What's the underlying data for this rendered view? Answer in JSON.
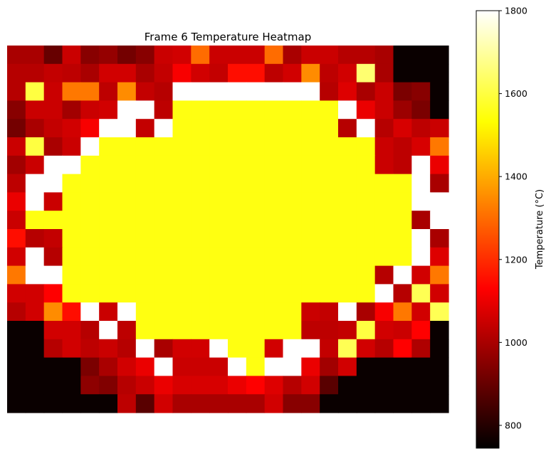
{
  "chart_data": {
    "type": "heatmap",
    "title": "Frame 6 Temperature Heatmap",
    "xlabel": "",
    "ylabel": "",
    "colormap": "hot",
    "colorbar": {
      "label": "Temperature (°C)",
      "vmin": 745,
      "vmax": 1800,
      "ticks": [
        800,
        1000,
        1200,
        1400,
        1600,
        1800
      ]
    },
    "rows": 20,
    "cols": 24,
    "values": [
      [
        1000,
        1000,
        900,
        1050,
        950,
        970,
        920,
        950,
        1050,
        1060,
        1300,
        1050,
        1050,
        1050,
        1300,
        1000,
        1050,
        1050,
        1020,
        1020,
        1000,
        760,
        760,
        760
      ],
      [
        1020,
        1020,
        1040,
        1030,
        1000,
        1060,
        1060,
        1000,
        1040,
        1120,
        1060,
        1040,
        1150,
        1150,
        1030,
        1060,
        1350,
        1030,
        1060,
        1650,
        1000,
        760,
        760,
        760
      ],
      [
        1020,
        1600,
        1050,
        1320,
        1320,
        1030,
        1350,
        1040,
        1020,
        1800,
        1800,
        1800,
        1800,
        1800,
        1800,
        1800,
        1800,
        1020,
        1080,
        1000,
        1050,
        930,
        950,
        760
      ],
      [
        950,
        1050,
        1050,
        990,
        1050,
        1060,
        1800,
        1800,
        1030,
        1550,
        1550,
        1550,
        1550,
        1550,
        1550,
        1550,
        1550,
        1550,
        1800,
        1100,
        1050,
        980,
        930,
        760
      ],
      [
        920,
        1000,
        1040,
        1060,
        1120,
        1800,
        1800,
        1040,
        1800,
        1550,
        1550,
        1550,
        1550,
        1550,
        1550,
        1550,
        1550,
        1550,
        1020,
        1800,
        1020,
        1070,
        1030,
        1050
      ],
      [
        1050,
        1600,
        1000,
        1050,
        1800,
        1550,
        1550,
        1550,
        1550,
        1550,
        1550,
        1550,
        1550,
        1550,
        1550,
        1550,
        1550,
        1550,
        1550,
        1550,
        1050,
        1030,
        1070,
        1320
      ],
      [
        990,
        1050,
        1800,
        1800,
        1550,
        1550,
        1550,
        1550,
        1550,
        1550,
        1550,
        1550,
        1550,
        1550,
        1550,
        1550,
        1550,
        1550,
        1550,
        1550,
        1050,
        1030,
        1800,
        1100
      ],
      [
        1030,
        1800,
        1800,
        1550,
        1550,
        1550,
        1550,
        1550,
        1550,
        1550,
        1550,
        1550,
        1550,
        1550,
        1550,
        1550,
        1550,
        1550,
        1550,
        1550,
        1550,
        1550,
        1800,
        1000
      ],
      [
        1100,
        1800,
        1050,
        1550,
        1550,
        1550,
        1550,
        1550,
        1550,
        1550,
        1550,
        1550,
        1550,
        1550,
        1550,
        1550,
        1550,
        1550,
        1550,
        1550,
        1550,
        1550,
        1800,
        1800
      ],
      [
        1050,
        1550,
        1550,
        1550,
        1550,
        1550,
        1550,
        1550,
        1550,
        1550,
        1550,
        1550,
        1550,
        1550,
        1550,
        1550,
        1550,
        1550,
        1550,
        1550,
        1550,
        1550,
        1000,
        1800
      ],
      [
        1150,
        1020,
        1040,
        1550,
        1550,
        1550,
        1550,
        1550,
        1550,
        1550,
        1550,
        1550,
        1550,
        1550,
        1550,
        1550,
        1550,
        1550,
        1550,
        1550,
        1550,
        1550,
        1800,
        1000
      ],
      [
        1060,
        1800,
        1020,
        1550,
        1550,
        1550,
        1550,
        1550,
        1550,
        1550,
        1550,
        1550,
        1550,
        1550,
        1550,
        1550,
        1550,
        1550,
        1550,
        1550,
        1550,
        1550,
        1800,
        1080
      ],
      [
        1320,
        1800,
        1800,
        1550,
        1550,
        1550,
        1550,
        1550,
        1550,
        1550,
        1550,
        1550,
        1550,
        1550,
        1550,
        1550,
        1550,
        1550,
        1550,
        1550,
        1020,
        1800,
        1060,
        1320
      ],
      [
        1060,
        1060,
        1130,
        1550,
        1550,
        1550,
        1550,
        1550,
        1550,
        1550,
        1550,
        1550,
        1550,
        1550,
        1550,
        1550,
        1550,
        1550,
        1550,
        1550,
        1800,
        1020,
        1620,
        1060
      ],
      [
        1020,
        1060,
        1350,
        1150,
        1800,
        1050,
        1800,
        1550,
        1550,
        1550,
        1550,
        1550,
        1550,
        1550,
        1550,
        1550,
        1050,
        1040,
        1800,
        1000,
        1120,
        1320,
        1060,
        1620
      ],
      [
        760,
        760,
        1060,
        1060,
        1020,
        1800,
        1030,
        1550,
        1550,
        1550,
        1550,
        1550,
        1550,
        1550,
        1550,
        1550,
        1030,
        1030,
        1040,
        1600,
        1060,
        1050,
        1130,
        760
      ],
      [
        760,
        760,
        1020,
        1060,
        1030,
        1050,
        1020,
        1800,
        1000,
        1060,
        1060,
        1800,
        1550,
        1550,
        1060,
        1800,
        1800,
        1040,
        1620,
        1060,
        1020,
        1130,
        1010,
        760
      ],
      [
        760,
        760,
        760,
        760,
        930,
        1000,
        1060,
        1100,
        1800,
        1050,
        1050,
        1050,
        1800,
        1550,
        1800,
        1800,
        1100,
        990,
        1060,
        760,
        760,
        760,
        760,
        760
      ],
      [
        760,
        760,
        760,
        760,
        960,
        940,
        1020,
        1050,
        1100,
        1070,
        1070,
        1070,
        1100,
        1130,
        1080,
        1020,
        1060,
        880,
        760,
        760,
        760,
        760,
        760,
        760
      ],
      [
        760,
        760,
        760,
        760,
        760,
        760,
        1030,
        880,
        1060,
        1000,
        1000,
        1000,
        1000,
        1000,
        1060,
        950,
        950,
        760,
        760,
        760,
        760,
        760,
        760,
        760
      ]
    ]
  }
}
